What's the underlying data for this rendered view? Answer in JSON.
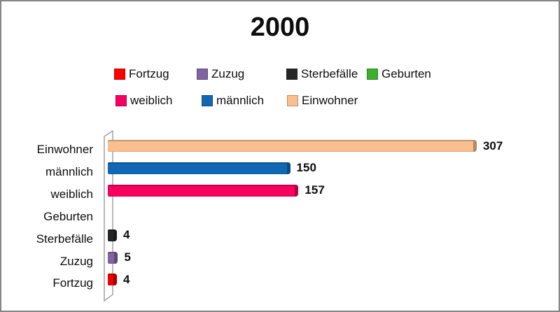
{
  "title": "2000",
  "legend": {
    "row1": [
      {
        "label": "Fortzug",
        "color": "#FE0000"
      },
      {
        "label": "Zuzug",
        "color": "#8064A2"
      },
      {
        "label": "Sterbefälle",
        "color": "#262626"
      },
      {
        "label": "Geburten",
        "color": "#3CB02C"
      }
    ],
    "row2": [
      {
        "label": "weiblich",
        "color": "#F7015F"
      },
      {
        "label": "männlich",
        "color": "#1068B5"
      },
      {
        "label": "Einwohner",
        "color": "#FABF8F"
      }
    ]
  },
  "chart_data": {
    "type": "bar",
    "orientation": "horizontal",
    "title": "2000",
    "categories": [
      "Einwohner",
      "männlich",
      "weiblich",
      "Geburten",
      "Sterbefälle",
      "Zuzug",
      "Fortzug"
    ],
    "values": [
      307,
      150,
      157,
      null,
      4,
      5,
      4
    ],
    "data_labels": [
      "307",
      "150",
      "157",
      "",
      "4",
      "5",
      "4"
    ],
    "series_colors": {
      "Einwohner": "#FABF8F",
      "männlich": "#1068B5",
      "weiblich": "#F7015F",
      "Geburten": "#3CB02C",
      "Sterbefälle": "#262626",
      "Zuzug": "#8064A2",
      "Fortzug": "#EE0000"
    },
    "xlabel": "",
    "ylabel": "",
    "value_axis_visible": false,
    "gridlines": false,
    "legend_position": "top",
    "style": "3d-horizontal-bar"
  }
}
